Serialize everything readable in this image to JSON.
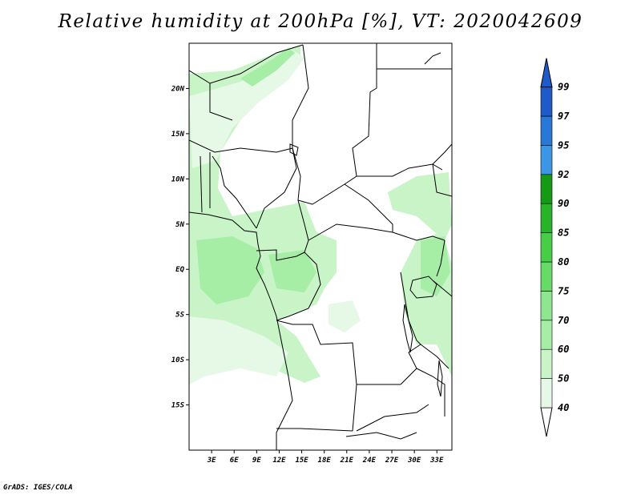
{
  "title": "Relative humidity at 200hPa [%], VT: 2020042609",
  "credit": "GrADS: IGES/COLA",
  "map": {
    "lon_range": [
      0,
      35
    ],
    "lat_range": [
      -20,
      25
    ],
    "lat_ticks": [
      {
        "lat": 20,
        "label": "20N"
      },
      {
        "lat": 15,
        "label": "15N"
      },
      {
        "lat": 10,
        "label": "10N"
      },
      {
        "lat": 5,
        "label": "5N"
      },
      {
        "lat": 0,
        "label": "EQ"
      },
      {
        "lat": -5,
        "label": "5S"
      },
      {
        "lat": -10,
        "label": "10S"
      },
      {
        "lat": -15,
        "label": "15S"
      }
    ],
    "lon_ticks": [
      {
        "lon": 3,
        "label": "3E"
      },
      {
        "lon": 6,
        "label": "6E"
      },
      {
        "lon": 9,
        "label": "9E"
      },
      {
        "lon": 12,
        "label": "12E"
      },
      {
        "lon": 15,
        "label": "15E"
      },
      {
        "lon": 18,
        "label": "18E"
      },
      {
        "lon": 21,
        "label": "21E"
      },
      {
        "lon": 24,
        "label": "24E"
      },
      {
        "lon": 27,
        "label": "27E"
      },
      {
        "lon": 30,
        "label": "30E"
      },
      {
        "lon": 33,
        "label": "33E"
      }
    ]
  },
  "colorbar": {
    "levels": [
      {
        "label": "40",
        "color": "#ffffff"
      },
      {
        "label": "50",
        "color": "#e6f9e6"
      },
      {
        "label": "60",
        "color": "#c8f4c8"
      },
      {
        "label": "70",
        "color": "#a6eda6"
      },
      {
        "label": "75",
        "color": "#8ee68e"
      },
      {
        "label": "80",
        "color": "#66dc66"
      },
      {
        "label": "85",
        "color": "#46cf46"
      },
      {
        "label": "90",
        "color": "#28b428"
      },
      {
        "label": "92",
        "color": "#159a15"
      },
      {
        "label": "95",
        "color": "#3c96e6"
      },
      {
        "label": "97",
        "color": "#2878d8"
      },
      {
        "label": "99",
        "color": "#1e5ac8"
      }
    ]
  },
  "colors": {
    "humid_light": "#e6f9e6",
    "humid_mid": "#c8f4c8",
    "humid_strong": "#a6eda6"
  }
}
